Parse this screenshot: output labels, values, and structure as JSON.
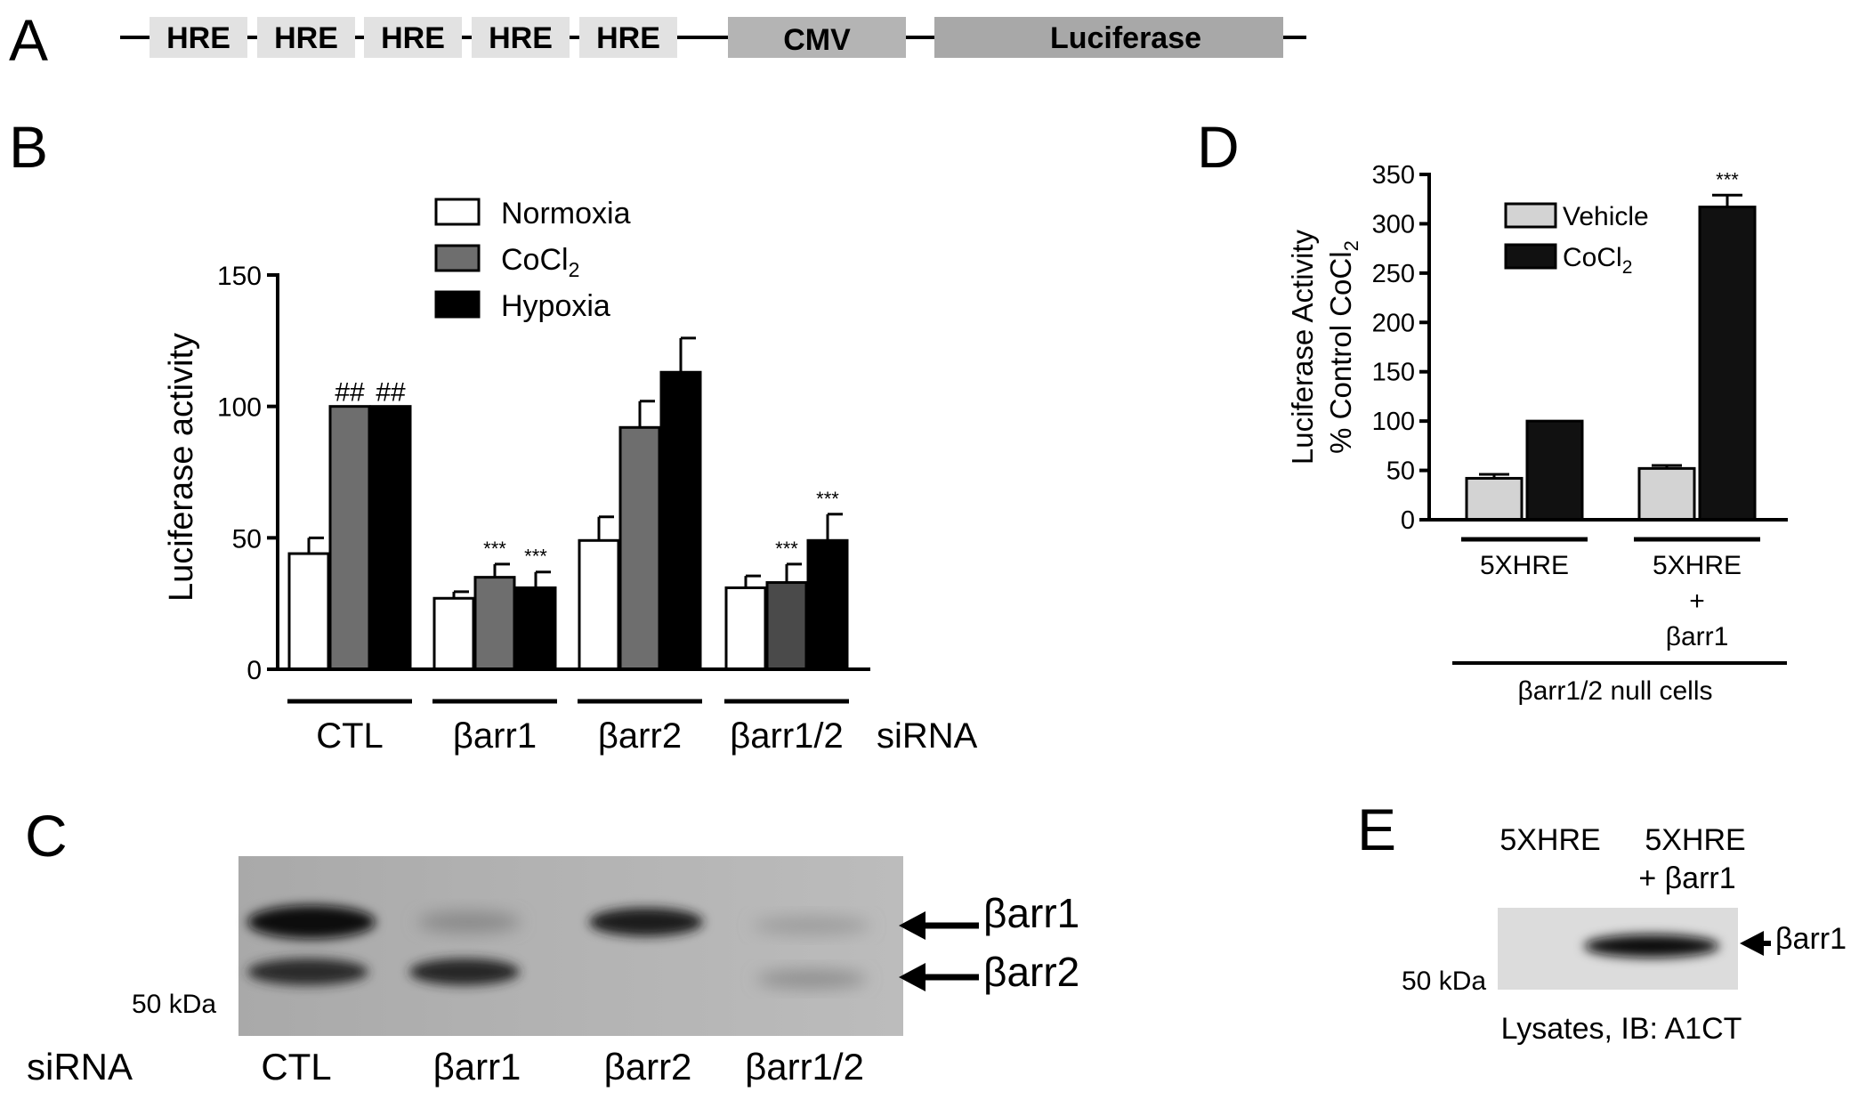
{
  "panels": {
    "A": "A",
    "B": "B",
    "C": "C",
    "D": "D",
    "E": "E"
  },
  "construct": {
    "elements": [
      "HRE",
      "HRE",
      "HRE",
      "HRE",
      "HRE",
      "CMV",
      "Luciferase"
    ],
    "colors": {
      "hre": "#e2e2e2",
      "cmv": "#b4b4b4",
      "luc": "#a8a8a8"
    }
  },
  "chart_data": [
    {
      "id": "B",
      "type": "bar",
      "ylabel": "Luciferase activity",
      "ylim": [
        0,
        150
      ],
      "yticks": [
        "0",
        "50",
        "100",
        "150"
      ],
      "categories": [
        "CTL",
        "βarr1",
        "βarr2",
        "βarr1/2"
      ],
      "xsuffix": "siRNA",
      "series": [
        {
          "name": "Normoxia",
          "values": [
            44,
            27,
            49,
            31
          ],
          "errors": [
            6,
            2.5,
            9,
            4.5
          ],
          "color": "#ffffff"
        },
        {
          "name": "CoCl2",
          "values": [
            100,
            35,
            92,
            33
          ],
          "errors": [
            0,
            5,
            10,
            7
          ],
          "color": "#6e6e6e"
        },
        {
          "name": "Hypoxia",
          "values": [
            100,
            31,
            113,
            49
          ],
          "errors": [
            0,
            6,
            13,
            10
          ],
          "color": "#000000"
        }
      ],
      "annotations": [
        {
          "group": 0,
          "series": 1,
          "text": "##"
        },
        {
          "group": 0,
          "series": 2,
          "text": "##"
        },
        {
          "group": 1,
          "series": 1,
          "text": "***"
        },
        {
          "group": 1,
          "series": 2,
          "text": "***"
        },
        {
          "group": 3,
          "series": 1,
          "text": "***"
        },
        {
          "group": 3,
          "series": 2,
          "text": "***"
        }
      ],
      "legend_position": "top"
    },
    {
      "id": "D",
      "type": "bar",
      "ylabel_line1": "Luciferase Activity",
      "ylabel_line2": "% Control CoCl",
      "ylabel_sub": "2",
      "ylim": [
        0,
        350
      ],
      "yticks": [
        "0",
        "50",
        "100",
        "150",
        "200",
        "250",
        "300",
        "350"
      ],
      "categories": [
        "5XHRE",
        "5XHRE + βarr1"
      ],
      "category_lines": [
        [
          "5XHRE"
        ],
        [
          "5XHRE",
          "+",
          "βarr1"
        ]
      ],
      "group_label": "βarr1/2 null cells",
      "series": [
        {
          "name": "Vehicle",
          "values": [
            42,
            52
          ],
          "errors": [
            4,
            3
          ],
          "color": "#d3d3d3"
        },
        {
          "name": "CoCl2",
          "values": [
            100,
            317
          ],
          "errors": [
            0,
            12
          ],
          "color": "#111111"
        }
      ],
      "annotations": [
        {
          "group": 1,
          "series": 1,
          "text": "***"
        }
      ],
      "legend_position": "top-left"
    }
  ],
  "blotC": {
    "bands": [
      "βarr1",
      "βarr2"
    ],
    "marker": "50 kDa",
    "row_label": "siRNA",
    "lanes": [
      "CTL",
      "βarr1",
      "βarr2",
      "βarr1/2"
    ]
  },
  "blotE": {
    "lanes": [
      [
        "5XHRE"
      ],
      [
        "5XHRE",
        "+ βarr1"
      ]
    ],
    "band": "βarr1",
    "marker": "50 kDa",
    "caption": "Lysates, IB: A1CT"
  }
}
